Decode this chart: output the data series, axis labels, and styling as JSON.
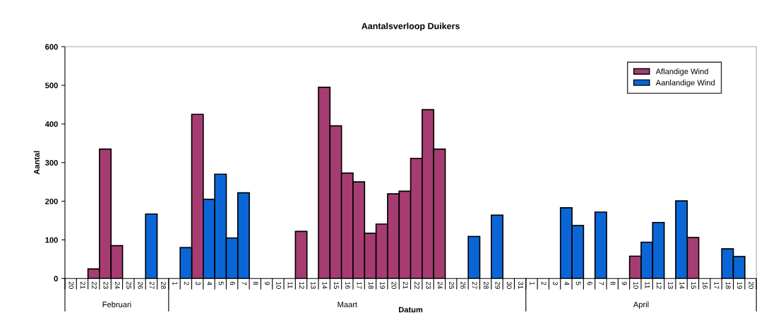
{
  "chart_data": {
    "type": "bar",
    "title": "Aantalsverloop Duikers",
    "xlabel": "Datum",
    "ylabel": "Aantal",
    "categories": [
      "20",
      "21",
      "22",
      "23",
      "24",
      "25",
      "26",
      "27",
      "28",
      "1",
      "2",
      "3",
      "4",
      "5",
      "6",
      "7",
      "8",
      "9",
      "10",
      "11",
      "12",
      "13",
      "14",
      "15",
      "16",
      "17",
      "18",
      "19",
      "20",
      "21",
      "22",
      "23",
      "24",
      "25",
      "26",
      "27",
      "28",
      "29",
      "30",
      "31",
      "1",
      "2",
      "3",
      "4",
      "5",
      "6",
      "7",
      "8",
      "9",
      "10",
      "11",
      "12",
      "13",
      "14",
      "15",
      "16",
      "17",
      "18",
      "19",
      "20"
    ],
    "series": [
      {
        "name": "Aflandige Wind",
        "color": "#a63d72",
        "values": [
          null,
          null,
          25,
          335,
          85,
          null,
          null,
          null,
          null,
          null,
          null,
          425,
          null,
          null,
          null,
          null,
          null,
          null,
          null,
          null,
          122,
          null,
          495,
          395,
          273,
          250,
          117,
          141,
          219,
          226,
          311,
          437,
          335,
          null,
          null,
          null,
          null,
          null,
          null,
          null,
          null,
          null,
          null,
          null,
          null,
          null,
          null,
          null,
          null,
          58,
          null,
          null,
          null,
          null,
          106,
          null,
          null,
          null,
          null,
          null
        ]
      },
      {
        "name": "Aanlandige Wind",
        "color": "#0a66d6",
        "values": [
          null,
          null,
          null,
          null,
          null,
          null,
          null,
          167,
          null,
          null,
          80,
          null,
          205,
          270,
          105,
          222,
          null,
          null,
          null,
          null,
          null,
          null,
          null,
          null,
          null,
          null,
          null,
          null,
          null,
          null,
          null,
          null,
          null,
          null,
          null,
          109,
          null,
          164,
          null,
          null,
          null,
          null,
          null,
          183,
          137,
          null,
          172,
          null,
          null,
          null,
          94,
          145,
          null,
          201,
          null,
          null,
          null,
          77,
          57,
          null
        ]
      }
    ],
    "annotations": [
      "Februari",
      "Maart",
      "April"
    ],
    "ylim": [
      0,
      600
    ],
    "yticks": [
      0,
      100,
      200,
      300,
      400,
      500,
      600
    ],
    "grid": false,
    "legend": "top right"
  }
}
